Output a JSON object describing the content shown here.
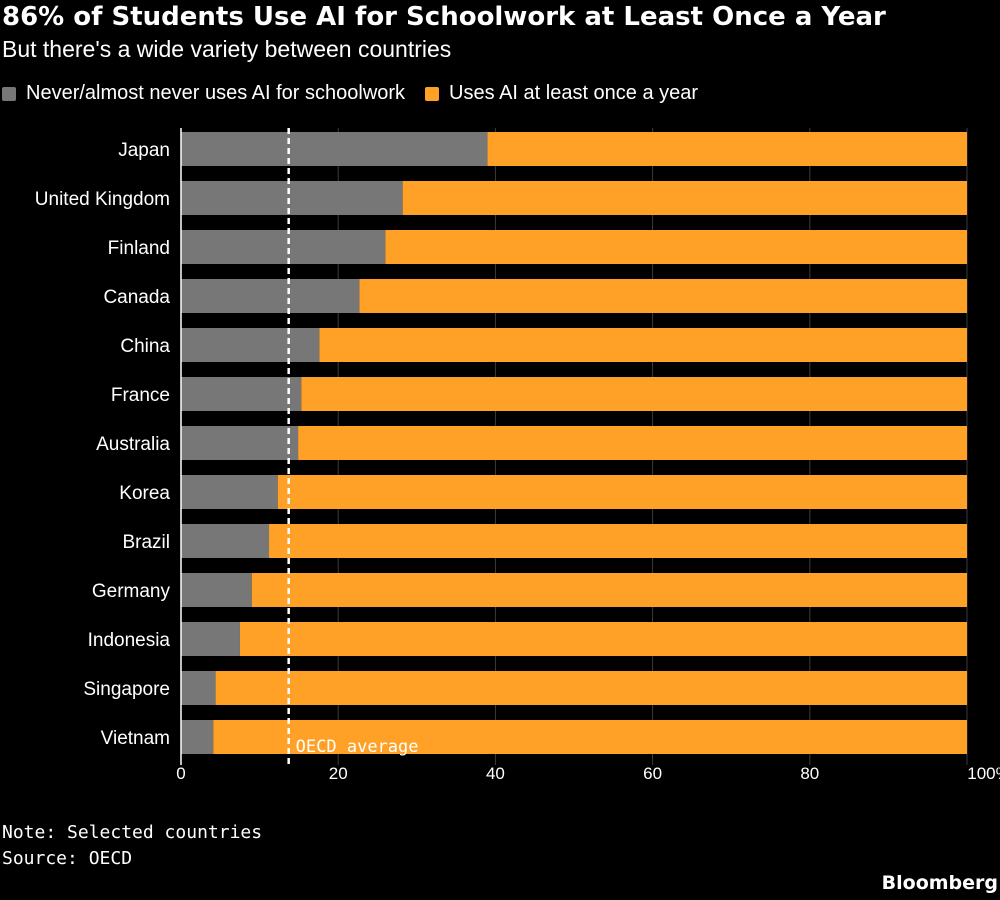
{
  "chart_data": {
    "type": "bar",
    "orientation": "horizontal",
    "stacked": true,
    "title": "86% of Students Use AI for Schoolwork at Least Once a Year",
    "subtitle": "But there's a wide variety between countries",
    "categories": [
      "Japan",
      "United Kingdom",
      "Finland",
      "Canada",
      "China",
      "France",
      "Australia",
      "Korea",
      "Brazil",
      "Germany",
      "Indonesia",
      "Singapore",
      "Vietnam"
    ],
    "series": [
      {
        "name": "Never/almost never uses AI for schoolwork",
        "color": "#777777",
        "values": [
          39,
          28.2,
          26,
          22.7,
          17.6,
          15.3,
          14.9,
          12.3,
          11.2,
          9,
          7.5,
          4.4,
          4.1
        ]
      },
      {
        "name": "Uses AI at least once a year",
        "color": "#ffa126",
        "values": [
          61,
          71.8,
          74,
          77.3,
          82.4,
          84.7,
          85.1,
          87.7,
          88.8,
          91,
          92.5,
          95.6,
          95.9
        ]
      }
    ],
    "xlim": [
      0,
      100
    ],
    "xticks": [
      "0",
      "20",
      "40",
      "60",
      "80",
      "100%"
    ],
    "xtick_values": [
      0,
      20,
      40,
      60,
      80,
      100
    ],
    "reference_line": {
      "label": "OECD average",
      "value": 13.7
    },
    "legend_position": "top-left",
    "grid": true
  },
  "footer": {
    "note": "Note: Selected countries",
    "source": "Source: OECD",
    "brand": "Bloomberg"
  }
}
